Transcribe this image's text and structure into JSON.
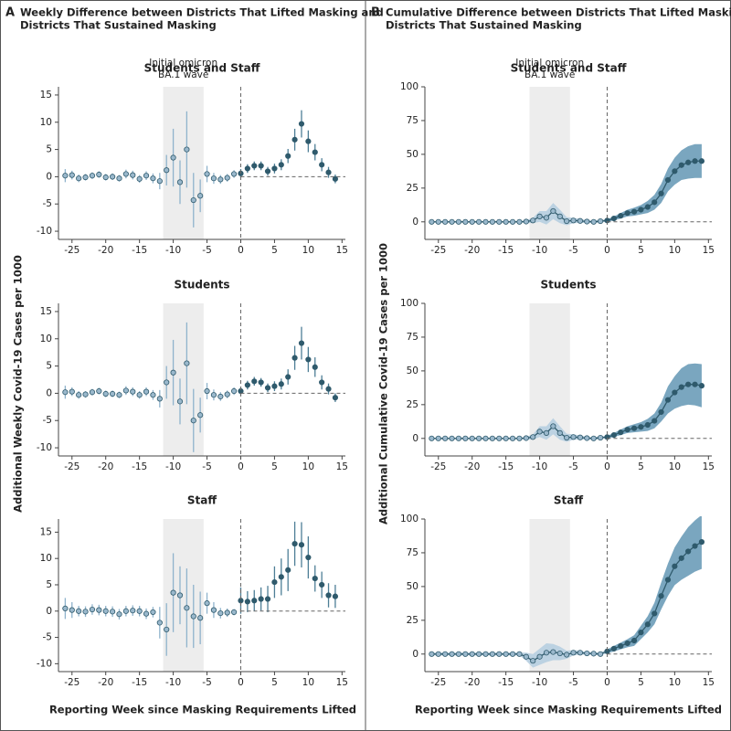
{
  "panels": [
    {
      "letter": "A",
      "title": [
        "Weekly Difference between Districts That Lifted Masking and",
        "Districts That Sustained Masking"
      ],
      "ylabel": "Additional Weekly Covid-19 Cases per 1000",
      "xlabel": "Reporting Week since Masking Requirements Lifted"
    },
    {
      "letter": "B",
      "title": [
        "Cumulative Difference between Districts That Lifted Masking and",
        "Districts That Sustained Masking"
      ],
      "ylabel": "Additional Cumulative Covid-19 Cases per 1000",
      "xlabel": "Reporting Week since Masking Requirements Lifted"
    }
  ],
  "colors": {
    "pre": "#9ab8cc",
    "post": "#2f5a6c",
    "bar_pre": "#8fb3cc",
    "bar_post": "#4d7e96",
    "band_pre": "#bcd2e2",
    "band_post": "#7aa6bf",
    "shade": "#ededed"
  },
  "chart_data": [
    {
      "type": "errorbar",
      "subtitle": "Students and Staff",
      "annotation": [
        "Initial omicron",
        "BA.1 wave"
      ],
      "shade": [
        -11.5,
        -5.5
      ],
      "vline": 0,
      "hline": 0,
      "x": [
        -26,
        -25,
        -24,
        -23,
        -22,
        -21,
        -20,
        -19,
        -18,
        -17,
        -16,
        -15,
        -14,
        -13,
        -12,
        -11,
        -10,
        -9,
        -8,
        -7,
        -6,
        -5,
        -4,
        -3,
        -2,
        -1,
        0,
        1,
        2,
        3,
        4,
        5,
        6,
        7,
        8,
        9,
        10,
        11,
        12,
        13,
        14
      ],
      "values": [
        0.2,
        0.3,
        -0.3,
        -0.1,
        0.2,
        0.4,
        -0.1,
        0,
        -0.3,
        0.5,
        0.3,
        -0.4,
        0.2,
        -0.3,
        -0.8,
        1.2,
        3.5,
        -1,
        5,
        -4.3,
        -3.5,
        0.5,
        -0.3,
        -0.5,
        -0.2,
        0.5,
        0.6,
        1.5,
        2,
        2,
        1,
        1.5,
        2.2,
        3.8,
        6.8,
        9.7,
        6.5,
        4.5,
        2.2,
        0.8,
        -0.4
      ],
      "errors": [
        1.2,
        0.8,
        0.7,
        0.6,
        0.6,
        0.6,
        0.6,
        0.6,
        0.6,
        0.8,
        0.8,
        0.7,
        0.8,
        0.9,
        1.5,
        2.8,
        5.3,
        4,
        7,
        5,
        3,
        1.5,
        1,
        0.8,
        0.7,
        0.7,
        0.8,
        0.8,
        0.8,
        0.8,
        0.8,
        0.9,
        1,
        1.3,
        2,
        2.5,
        2,
        1.5,
        1.2,
        1,
        0.8
      ],
      "xlim": [
        -27,
        15.5
      ],
      "ylim": [
        -11.5,
        16.5
      ],
      "xticks": [
        -25,
        -20,
        -15,
        -10,
        -5,
        0,
        5,
        10,
        15
      ],
      "yticks": [
        -10,
        -5,
        0,
        5,
        10,
        15
      ]
    },
    {
      "type": "errorbar",
      "subtitle": "Students",
      "shade": [
        -11.5,
        -5.5
      ],
      "vline": 0,
      "hline": 0,
      "x": [
        -26,
        -25,
        -24,
        -23,
        -22,
        -21,
        -20,
        -19,
        -18,
        -17,
        -16,
        -15,
        -14,
        -13,
        -12,
        -11,
        -10,
        -9,
        -8,
        -7,
        -6,
        -5,
        -4,
        -3,
        -2,
        -1,
        0,
        1,
        2,
        3,
        4,
        5,
        6,
        7,
        8,
        9,
        10,
        11,
        12,
        13,
        14
      ],
      "values": [
        0.2,
        0.3,
        -0.3,
        -0.2,
        0.2,
        0.4,
        -0.1,
        -0.1,
        -0.3,
        0.5,
        0.3,
        -0.3,
        0.3,
        -0.3,
        -1,
        2,
        3.8,
        -1.5,
        5.5,
        -5,
        -4,
        0.4,
        -0.3,
        -0.6,
        -0.2,
        0.4,
        0.4,
        1.5,
        2.2,
        2,
        1,
        1.3,
        1.7,
        3,
        6.5,
        9.2,
        6.2,
        4.8,
        2,
        0.8,
        -0.8
      ],
      "errors": [
        1.2,
        0.8,
        0.7,
        0.6,
        0.6,
        0.6,
        0.6,
        0.6,
        0.6,
        0.8,
        0.8,
        0.7,
        0.8,
        0.9,
        1.6,
        3,
        6,
        4.2,
        7.5,
        5.8,
        3.2,
        1.5,
        1,
        0.8,
        0.7,
        0.7,
        0.8,
        0.8,
        0.8,
        0.8,
        0.8,
        0.9,
        1,
        1.4,
        2.2,
        3,
        2.3,
        1.8,
        1.3,
        1,
        0.8
      ],
      "xlim": [
        -27,
        15.5
      ],
      "ylim": [
        -11.5,
        16.5
      ],
      "xticks": [
        -25,
        -20,
        -15,
        -10,
        -5,
        0,
        5,
        10,
        15
      ],
      "yticks": [
        -10,
        -5,
        0,
        5,
        10,
        15
      ]
    },
    {
      "type": "errorbar",
      "subtitle": "Staff",
      "shade": [
        -11.5,
        -5.5
      ],
      "vline": 0,
      "hline": 0,
      "x": [
        -26,
        -25,
        -24,
        -23,
        -22,
        -21,
        -20,
        -19,
        -18,
        -17,
        -16,
        -15,
        -14,
        -13,
        -12,
        -11,
        -10,
        -9,
        -8,
        -7,
        -6,
        -5,
        -4,
        -3,
        -2,
        -1,
        0,
        1,
        2,
        3,
        4,
        5,
        6,
        7,
        8,
        9,
        10,
        11,
        12,
        13,
        14
      ],
      "values": [
        0.5,
        0.2,
        0,
        -0.1,
        0.3,
        0.2,
        0,
        -0.1,
        -0.6,
        0,
        0.1,
        0,
        -0.5,
        -0.2,
        -2.2,
        -3.5,
        3.5,
        3,
        0.6,
        -1,
        -1.3,
        1.5,
        0.2,
        -0.4,
        -0.3,
        -0.2,
        2,
        1.8,
        2,
        2.3,
        2.3,
        5.5,
        6.5,
        7.8,
        12.8,
        12.6,
        10.2,
        6.2,
        5,
        3,
        2.8
      ],
      "errors": [
        2,
        1.5,
        1,
        1,
        1,
        1,
        1,
        1,
        1,
        1,
        1,
        1,
        1,
        1,
        3,
        5,
        7.5,
        5.5,
        7.5,
        6,
        5,
        2,
        1.5,
        1,
        0.8,
        0.6,
        2.5,
        2,
        2,
        2.2,
        2.5,
        3,
        3.5,
        4,
        4.2,
        4.3,
        4,
        2.5,
        2.5,
        2.3,
        2.2
      ],
      "xlim": [
        -27,
        15.5
      ],
      "ylim": [
        -11.5,
        17.5
      ],
      "xticks": [
        -25,
        -20,
        -15,
        -10,
        -5,
        0,
        5,
        10,
        15
      ],
      "yticks": [
        -10,
        -5,
        0,
        5,
        10,
        15
      ]
    },
    {
      "type": "band",
      "subtitle": "Students and Staff",
      "annotation": [
        "Initial omicron",
        "BA.1 wave"
      ],
      "shade": [
        -11.5,
        -5.5
      ],
      "vline": 0,
      "hline": 0,
      "x": [
        -26,
        -25,
        -24,
        -23,
        -22,
        -21,
        -20,
        -19,
        -18,
        -17,
        -16,
        -15,
        -14,
        -13,
        -12,
        -11,
        -10,
        -9,
        -8,
        -7,
        -6,
        -5,
        -4,
        -3,
        -2,
        -1,
        0,
        1,
        2,
        3,
        4,
        5,
        6,
        7,
        8,
        9,
        10,
        11,
        12,
        13,
        14
      ],
      "values": [
        0,
        0,
        0,
        0,
        0,
        0,
        0,
        0,
        0,
        0,
        0,
        0,
        0,
        0,
        0.2,
        1,
        4,
        3,
        8,
        4,
        0.5,
        1,
        0.7,
        0.2,
        0,
        0.5,
        1,
        2.5,
        4.5,
        6.5,
        7.5,
        9,
        11,
        14.5,
        21,
        31,
        37.5,
        42,
        44,
        45,
        45
      ],
      "errors": [
        0.5,
        0.5,
        0.5,
        0.5,
        0.5,
        0.5,
        0.5,
        0.5,
        0.5,
        0.5,
        0.5,
        0.5,
        0.5,
        0.5,
        1,
        2,
        4,
        5,
        6,
        5,
        3,
        2,
        1.5,
        1,
        1,
        1,
        1,
        1.5,
        2,
        2.5,
        3,
        3.5,
        4.5,
        5.5,
        7,
        8.5,
        10,
        11,
        12,
        12.5,
        12.5
      ],
      "xlim": [
        -27,
        15.5
      ],
      "ylim": [
        -13,
        100
      ],
      "xticks": [
        -25,
        -20,
        -15,
        -10,
        -5,
        0,
        5,
        10,
        15
      ],
      "yticks": [
        0,
        25,
        50,
        75,
        100
      ]
    },
    {
      "type": "band",
      "subtitle": "Students",
      "shade": [
        -11.5,
        -5.5
      ],
      "vline": 0,
      "hline": 0,
      "x": [
        -26,
        -25,
        -24,
        -23,
        -22,
        -21,
        -20,
        -19,
        -18,
        -17,
        -16,
        -15,
        -14,
        -13,
        -12,
        -11,
        -10,
        -9,
        -8,
        -7,
        -6,
        -5,
        -4,
        -3,
        -2,
        -1,
        0,
        1,
        2,
        3,
        4,
        5,
        6,
        7,
        8,
        9,
        10,
        11,
        12,
        13,
        14
      ],
      "values": [
        0,
        0,
        0,
        0,
        0,
        0,
        0,
        0,
        0,
        0,
        0,
        0,
        0,
        0,
        0.2,
        1,
        5,
        4,
        9,
        4,
        0.5,
        1,
        0.7,
        0.2,
        0,
        0.5,
        1,
        2.5,
        4.5,
        6.5,
        7.5,
        8.5,
        10,
        13,
        19.5,
        28.5,
        34,
        38,
        40,
        40,
        39
      ],
      "errors": [
        0.5,
        0.5,
        0.5,
        0.5,
        0.5,
        0.5,
        0.5,
        0.5,
        0.5,
        0.5,
        0.5,
        0.5,
        0.5,
        0.5,
        1,
        2,
        4,
        5,
        6,
        5,
        3,
        2,
        1.5,
        1,
        1,
        1,
        1,
        1.5,
        2,
        2.5,
        3,
        3.5,
        4.5,
        5.5,
        7,
        10,
        12,
        14,
        15,
        15.5,
        16
      ],
      "xlim": [
        -27,
        15.5
      ],
      "ylim": [
        -13,
        100
      ],
      "xticks": [
        -25,
        -20,
        -15,
        -10,
        -5,
        0,
        5,
        10,
        15
      ],
      "yticks": [
        0,
        25,
        50,
        75,
        100
      ]
    },
    {
      "type": "band",
      "subtitle": "Staff",
      "shade": [
        -11.5,
        -5.5
      ],
      "vline": 0,
      "hline": 0,
      "x": [
        -26,
        -25,
        -24,
        -23,
        -22,
        -21,
        -20,
        -19,
        -18,
        -17,
        -16,
        -15,
        -14,
        -13,
        -12,
        -11,
        -10,
        -9,
        -8,
        -7,
        -6,
        -5,
        -4,
        -3,
        -2,
        -1,
        0,
        1,
        2,
        3,
        4,
        5,
        6,
        7,
        8,
        9,
        10,
        11,
        12,
        13,
        14
      ],
      "values": [
        0,
        0,
        0,
        0,
        0,
        0,
        0,
        0,
        0,
        0,
        0,
        0,
        0,
        0,
        -2,
        -5,
        -2,
        1,
        1.5,
        0.5,
        -0.5,
        1,
        1,
        0.5,
        0.3,
        0,
        2,
        4,
        6,
        8,
        10,
        16,
        22,
        30,
        43,
        55,
        65,
        71,
        76,
        80,
        83
      ],
      "errors": [
        1,
        1,
        1,
        1,
        1,
        1,
        1,
        1,
        1,
        1,
        1,
        1,
        1,
        1,
        3,
        5,
        6,
        7,
        6,
        5,
        3,
        2,
        1.5,
        1,
        1,
        1,
        1.5,
        2,
        2.5,
        3,
        4,
        5,
        6,
        8,
        10,
        12,
        14,
        16,
        18,
        19,
        20
      ],
      "xlim": [
        -27,
        15.5
      ],
      "ylim": [
        -13,
        100
      ],
      "xticks": [
        -25,
        -20,
        -15,
        -10,
        -5,
        0,
        5,
        10,
        15
      ],
      "yticks": [
        0,
        25,
        50,
        75,
        100
      ]
    }
  ]
}
